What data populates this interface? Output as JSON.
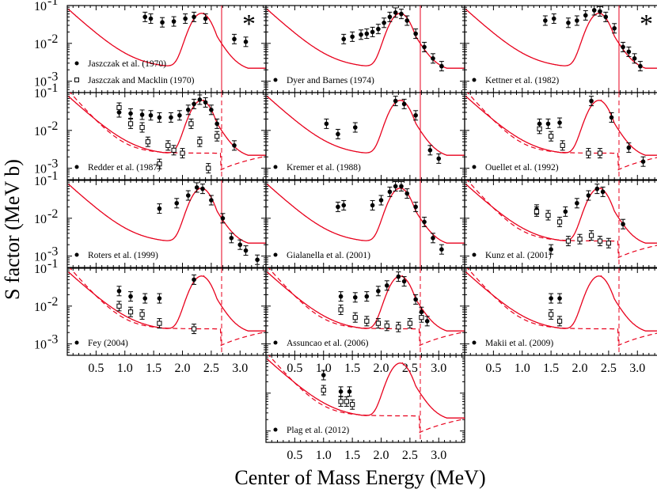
{
  "chart_data": {
    "type": "scatter",
    "xlabel": "Center of Mass Energy (MeV)",
    "ylabel": "S factor (MeV b)",
    "yscale": "log",
    "ylim": [
      0.0005,
      0.1
    ],
    "xlim": [
      0,
      3.45
    ],
    "x_ticks": [
      "0.5",
      "1.0",
      "1.5",
      "2.0",
      "2.5",
      "3.0"
    ],
    "y_ticks": [
      "10^-1",
      "10^-2",
      "10^-3"
    ],
    "colors": {
      "fit": "#e8001c",
      "data": "#000000",
      "frame": "#000000"
    },
    "panels": [
      {
        "id": "jaszczak",
        "row": 0,
        "col": 0,
        "star": true,
        "legend": [
          {
            "marker": "filled",
            "label": "Jaszczak et al. (1970)"
          },
          {
            "marker": "open",
            "label": "Jaszczak and Macklin (1970)"
          }
        ],
        "data": [
          {
            "marker": "filled",
            "points": [
              [
                1.35,
                0.05
              ],
              [
                1.45,
                0.045
              ],
              [
                1.65,
                0.036
              ],
              [
                1.85,
                0.038
              ],
              [
                2.05,
                0.045
              ],
              [
                2.2,
                0.05
              ],
              [
                2.4,
                0.045
              ],
              [
                2.9,
                0.013
              ],
              [
                3.1,
                0.011
              ]
            ]
          }
        ],
        "dashed": false,
        "xticks": false
      },
      {
        "id": "dyer",
        "row": 0,
        "col": 1,
        "legend": [
          {
            "marker": "filled",
            "label": "Dyer and Barnes (1974)"
          }
        ],
        "data": [
          {
            "marker": "filled",
            "points": [
              [
                1.35,
                0.013
              ],
              [
                1.5,
                0.015
              ],
              [
                1.65,
                0.017
              ],
              [
                1.75,
                0.018
              ],
              [
                1.85,
                0.02
              ],
              [
                1.95,
                0.024
              ],
              [
                2.05,
                0.035
              ],
              [
                2.15,
                0.05
              ],
              [
                2.25,
                0.065
              ],
              [
                2.35,
                0.06
              ],
              [
                2.45,
                0.04
              ],
              [
                2.6,
                0.018
              ],
              [
                2.75,
                0.008
              ],
              [
                2.9,
                0.004
              ],
              [
                3.05,
                0.0025
              ]
            ]
          }
        ],
        "dashed": false,
        "xticks": false
      },
      {
        "id": "kettner",
        "row": 0,
        "col": 2,
        "star": true,
        "legend": [
          {
            "marker": "filled",
            "label": "Kettner et al. (1982)"
          }
        ],
        "data": [
          {
            "marker": "filled",
            "points": [
              [
                1.4,
                0.04
              ],
              [
                1.55,
                0.045
              ],
              [
                1.8,
                0.035
              ],
              [
                1.95,
                0.04
              ],
              [
                2.1,
                0.055
              ],
              [
                2.25,
                0.075
              ],
              [
                2.35,
                0.07
              ],
              [
                2.45,
                0.05
              ],
              [
                2.6,
                0.025
              ],
              [
                2.75,
                0.008
              ],
              [
                2.85,
                0.006
              ],
              [
                2.95,
                0.004
              ],
              [
                3.05,
                0.0025
              ]
            ]
          }
        ],
        "dashed": false,
        "xticks": false
      },
      {
        "id": "redder",
        "row": 1,
        "col": 0,
        "legend": [
          {
            "marker": "filled",
            "label": "Redder et al. (1987)"
          }
        ],
        "data": [
          {
            "marker": "filled",
            "points": [
              [
                0.9,
                0.03
              ],
              [
                1.1,
                0.028
              ],
              [
                1.3,
                0.026
              ],
              [
                1.45,
                0.025
              ],
              [
                1.6,
                0.022
              ],
              [
                1.8,
                0.022
              ],
              [
                1.95,
                0.025
              ],
              [
                2.1,
                0.035
              ],
              [
                2.2,
                0.05
              ],
              [
                2.3,
                0.065
              ],
              [
                2.4,
                0.055
              ],
              [
                2.5,
                0.035
              ],
              [
                2.6,
                0.015
              ],
              [
                2.9,
                0.004
              ]
            ]
          },
          {
            "marker": "open",
            "points": [
              [
                0.9,
                0.04
              ],
              [
                1.1,
                0.015
              ],
              [
                1.3,
                0.012
              ],
              [
                1.4,
                0.005
              ],
              [
                1.6,
                0.0013
              ],
              [
                1.75,
                0.004
              ],
              [
                1.85,
                0.003
              ],
              [
                2.0,
                0.0025
              ],
              [
                2.15,
                0.015
              ],
              [
                2.3,
                0.005
              ],
              [
                2.45,
                0.001
              ],
              [
                2.6,
                0.007
              ]
            ]
          }
        ],
        "dashed": true,
        "xticks": false
      },
      {
        "id": "kremer",
        "row": 1,
        "col": 1,
        "legend": [
          {
            "marker": "filled",
            "label": "Kremer et al. (1988)"
          }
        ],
        "data": [
          {
            "marker": "filled",
            "points": [
              [
                1.05,
                0.015
              ],
              [
                1.25,
                0.008
              ],
              [
                1.55,
                0.012
              ],
              [
                2.25,
                0.06
              ],
              [
                2.4,
                0.05
              ],
              [
                2.6,
                0.025
              ],
              [
                2.85,
                0.003
              ],
              [
                3.0,
                0.0018
              ]
            ]
          }
        ],
        "dashed": false,
        "xticks": false
      },
      {
        "id": "ouellet",
        "row": 1,
        "col": 2,
        "legend": [
          {
            "marker": "filled",
            "label": "Ouellet et al. (1992)"
          }
        ],
        "data": [
          {
            "marker": "filled",
            "points": [
              [
                1.3,
                0.015
              ],
              [
                1.45,
                0.015
              ],
              [
                1.65,
                0.016
              ],
              [
                2.2,
                0.06
              ],
              [
                2.55,
                0.022
              ],
              [
                2.85,
                0.0035
              ],
              [
                3.1,
                0.0015
              ]
            ]
          },
          {
            "marker": "open",
            "points": [
              [
                1.3,
                0.011
              ],
              [
                1.5,
                0.007
              ],
              [
                1.7,
                0.004
              ],
              [
                2.15,
                0.0025
              ],
              [
                2.35,
                0.0025
              ]
            ]
          }
        ],
        "dashed": true,
        "xticks": false
      },
      {
        "id": "roters",
        "row": 2,
        "col": 0,
        "legend": [
          {
            "marker": "filled",
            "label": "Roters et al. (1999)"
          }
        ],
        "data": [
          {
            "marker": "filled",
            "points": [
              [
                1.6,
                0.018
              ],
              [
                1.9,
                0.025
              ],
              [
                2.1,
                0.04
              ],
              [
                2.25,
                0.065
              ],
              [
                2.35,
                0.06
              ],
              [
                2.5,
                0.03
              ],
              [
                2.7,
                0.01
              ],
              [
                2.85,
                0.003
              ],
              [
                3.0,
                0.002
              ],
              [
                3.1,
                0.0014
              ],
              [
                3.3,
                0.0008
              ]
            ]
          }
        ],
        "dashed": false,
        "xticks": false
      },
      {
        "id": "gialanella",
        "row": 2,
        "col": 1,
        "legend": [
          {
            "marker": "filled",
            "label": "Gialanella et al. (2001)"
          }
        ],
        "data": [
          {
            "marker": "filled",
            "points": [
              [
                1.25,
                0.02
              ],
              [
                1.35,
                0.022
              ],
              [
                1.85,
                0.022
              ],
              [
                2.0,
                0.03
              ],
              [
                2.15,
                0.05
              ],
              [
                2.25,
                0.07
              ],
              [
                2.35,
                0.07
              ],
              [
                2.45,
                0.045
              ],
              [
                2.6,
                0.02
              ],
              [
                2.75,
                0.008
              ],
              [
                2.9,
                0.003
              ],
              [
                3.05,
                0.0015
              ]
            ]
          }
        ],
        "dashed": false,
        "xticks": false
      },
      {
        "id": "kunz",
        "row": 2,
        "col": 2,
        "legend": [
          {
            "marker": "filled",
            "label": "Kunz et al. (2001)"
          }
        ],
        "data": [
          {
            "marker": "filled",
            "points": [
              [
                1.25,
                0.017
              ],
              [
                1.5,
                0.0015
              ],
              [
                1.75,
                0.015
              ],
              [
                1.95,
                0.025
              ],
              [
                2.15,
                0.04
              ],
              [
                2.3,
                0.06
              ],
              [
                2.4,
                0.05
              ],
              [
                2.75,
                0.007
              ]
            ]
          },
          {
            "marker": "open",
            "points": [
              [
                1.25,
                0.015
              ],
              [
                1.45,
                0.012
              ],
              [
                1.65,
                0.008
              ],
              [
                1.8,
                0.0025
              ],
              [
                2.0,
                0.0028
              ],
              [
                2.2,
                0.0035
              ],
              [
                2.35,
                0.0025
              ],
              [
                2.5,
                0.0022
              ]
            ]
          }
        ],
        "dashed": true,
        "xticks": false
      },
      {
        "id": "fey",
        "row": 3,
        "col": 0,
        "legend": [
          {
            "marker": "filled",
            "label": "Fey (2004)"
          }
        ],
        "data": [
          {
            "marker": "filled",
            "points": [
              [
                0.9,
                0.025
              ],
              [
                1.1,
                0.018
              ],
              [
                1.35,
                0.016
              ],
              [
                1.6,
                0.016
              ],
              [
                2.2,
                0.05
              ]
            ]
          },
          {
            "marker": "open",
            "points": [
              [
                0.9,
                0.01
              ],
              [
                1.1,
                0.007
              ],
              [
                1.3,
                0.006
              ],
              [
                1.6,
                0.0035
              ],
              [
                2.2,
                0.0025
              ]
            ]
          }
        ],
        "dashed": true,
        "xticks": true
      },
      {
        "id": "assuncao",
        "row": 3,
        "col": 1,
        "legend": [
          {
            "marker": "filled",
            "label": "Assuncao et al. (2006)"
          }
        ],
        "data": [
          {
            "marker": "filled",
            "points": [
              [
                1.3,
                0.018
              ],
              [
                1.55,
                0.017
              ],
              [
                1.75,
                0.018
              ],
              [
                1.95,
                0.025
              ],
              [
                2.1,
                0.035
              ],
              [
                2.3,
                0.06
              ],
              [
                2.4,
                0.045
              ],
              [
                2.6,
                0.015
              ],
              [
                2.7,
                0.007
              ],
              [
                2.8,
                0.004
              ]
            ]
          },
          {
            "marker": "open",
            "points": [
              [
                1.3,
                0.008
              ],
              [
                1.55,
                0.005
              ],
              [
                1.75,
                0.004
              ],
              [
                1.95,
                0.0035
              ],
              [
                2.1,
                0.003
              ],
              [
                2.3,
                0.0028
              ],
              [
                2.5,
                0.0035
              ],
              [
                2.7,
                0.005
              ]
            ]
          }
        ],
        "dashed": true,
        "xticks": true
      },
      {
        "id": "makii",
        "row": 3,
        "col": 2,
        "legend": [
          {
            "marker": "filled",
            "label": "Makii et al. (2009)"
          }
        ],
        "data": [
          {
            "marker": "filled",
            "points": [
              [
                1.5,
                0.016
              ],
              [
                1.65,
                0.016
              ]
            ]
          },
          {
            "marker": "open",
            "points": [
              [
                1.5,
                0.006
              ],
              [
                1.65,
                0.004
              ]
            ]
          }
        ],
        "dashed": true,
        "xticks": true
      },
      {
        "id": "plag",
        "row": 4,
        "col": 1,
        "legend": [
          {
            "marker": "filled",
            "label": "Plag et al. (2012)"
          }
        ],
        "data": [
          {
            "marker": "filled",
            "points": [
              [
                1.0,
                0.03
              ],
              [
                1.3,
                0.011
              ],
              [
                1.45,
                0.011
              ]
            ]
          },
          {
            "marker": "open",
            "points": [
              [
                1.0,
                0.012
              ],
              [
                1.3,
                0.006
              ],
              [
                1.4,
                0.006
              ],
              [
                1.5,
                0.005
              ]
            ]
          }
        ],
        "dashed": true,
        "xticks": true
      }
    ]
  }
}
